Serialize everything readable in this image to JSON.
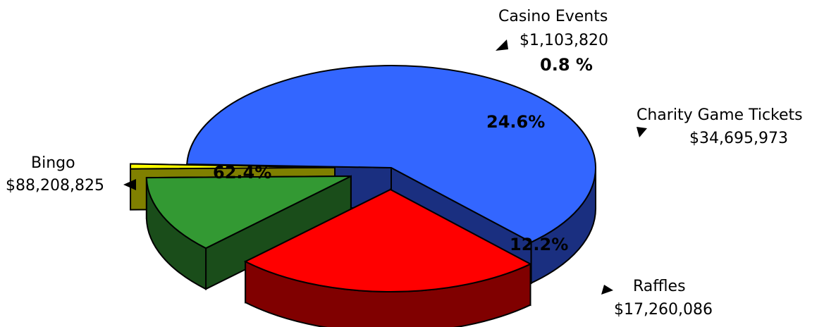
{
  "chart_data": {
    "type": "pie",
    "style": "3d-exploded",
    "categories": [
      "Bingo",
      "Charity Game Tickets",
      "Raffles",
      "Casino Events"
    ],
    "values": [
      88208825,
      34695973,
      17260086,
      1103820
    ],
    "value_labels": [
      "$88,208,825",
      "$34,695,973",
      "$17,260,086",
      "$1,103,820"
    ],
    "percent_labels": [
      "62.4%",
      "24.6%",
      "12.2%",
      "0.8 %"
    ],
    "colors": {
      "Bingo": {
        "top": "#3366ff",
        "side": "#1a2f80"
      },
      "Charity Game Tickets": {
        "top": "#ff0000",
        "side": "#800000"
      },
      "Raffles": {
        "top": "#339933",
        "side": "#1a4d1a"
      },
      "Casino Events": {
        "top": "#ffff00",
        "side": "#808000"
      }
    },
    "legend": "none"
  }
}
